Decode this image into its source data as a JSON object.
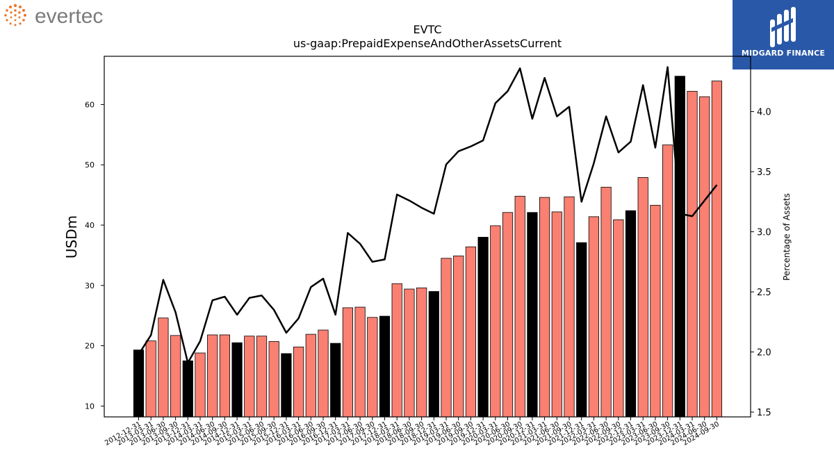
{
  "brand": {
    "left_logo_text": "evertec",
    "right_logo_text": "MIDGARD FINANCE"
  },
  "chart_data": {
    "type": "bar",
    "title": "EVTC",
    "subtitle": "us-gaap:PrepaidExpenseAndOtherAssetsCurrent",
    "ylabel": "USDm",
    "y2label": "Percentage of Assets",
    "ylim": [
      8.2,
      68
    ],
    "y2lim": [
      1.46,
      4.46
    ],
    "yticks": [
      10,
      20,
      30,
      40,
      50,
      60
    ],
    "y2ticks": [
      "1.5",
      "2.0",
      "2.5",
      "3.0",
      "3.5",
      "4.0"
    ],
    "bar_color": "#fa8072",
    "highlight_color": "#000000",
    "line_color": "#000000",
    "categories": [
      "2012-12-31",
      "2013-03-31",
      "2013-06-30",
      "2013-09-30",
      "2013-12-31",
      "2014-03-31",
      "2014-06-30",
      "2014-09-30",
      "2014-12-31",
      "2015-03-31",
      "2015-06-30",
      "2015-09-30",
      "2015-12-31",
      "2016-03-31",
      "2016-06-30",
      "2016-09-30",
      "2016-12-31",
      "2017-03-31",
      "2017-06-30",
      "2017-09-30",
      "2017-12-31",
      "2018-03-31",
      "2018-06-30",
      "2018-09-30",
      "2018-12-31",
      "2019-03-31",
      "2019-06-30",
      "2019-09-30",
      "2019-12-31",
      "2020-03-31",
      "2020-06-30",
      "2020-09-30",
      "2020-12-31",
      "2021-03-31",
      "2021-06-30",
      "2021-09-30",
      "2021-12-31",
      "2022-03-31",
      "2022-06-30",
      "2022-09-30",
      "2022-12-31",
      "2023-03-31",
      "2023-06-30",
      "2023-09-30",
      "2023-12-31",
      "2024-03-31",
      "2024-06-30",
      "2024-09-30"
    ],
    "series": [
      {
        "values": [
          19.3,
          20.8,
          24.6,
          21.7,
          17.5,
          18.8,
          21.8,
          21.8,
          20.5,
          21.6,
          21.6,
          20.7,
          18.7,
          19.8,
          21.9,
          22.6,
          20.4,
          26.3,
          26.4,
          24.7,
          24.9,
          30.3,
          29.4,
          29.6,
          29.0,
          34.5,
          34.9,
          36.4,
          38.0,
          39.9,
          42.1,
          44.8,
          42.1,
          44.6,
          42.2,
          44.7,
          37.1,
          41.4,
          46.3,
          40.9,
          42.4,
          47.9,
          43.3,
          53.3,
          64.7,
          62.2,
          61.3,
          63.9
        ],
        "highlight": [
          true,
          false,
          false,
          false,
          true,
          false,
          false,
          false,
          true,
          false,
          false,
          false,
          true,
          false,
          false,
          false,
          true,
          false,
          false,
          false,
          true,
          false,
          false,
          false,
          true,
          false,
          false,
          false,
          true,
          false,
          false,
          false,
          true,
          false,
          false,
          false,
          true,
          false,
          false,
          false,
          true,
          false,
          false,
          false,
          true,
          false,
          false,
          false
        ]
      },
      {
        "axis": "right",
        "values": [
          1.98,
          2.14,
          2.6,
          2.33,
          1.91,
          2.09,
          2.43,
          2.46,
          2.31,
          2.45,
          2.47,
          2.35,
          2.16,
          2.28,
          2.54,
          2.61,
          2.31,
          2.99,
          2.9,
          2.75,
          2.77,
          3.31,
          3.26,
          3.2,
          3.15,
          3.56,
          3.67,
          3.71,
          3.76,
          4.07,
          4.17,
          4.36,
          3.94,
          4.28,
          3.96,
          4.04,
          3.25,
          3.57,
          3.96,
          3.66,
          3.75,
          4.22,
          3.7,
          4.37,
          3.15,
          3.13,
          3.26,
          3.39
        ]
      }
    ]
  }
}
